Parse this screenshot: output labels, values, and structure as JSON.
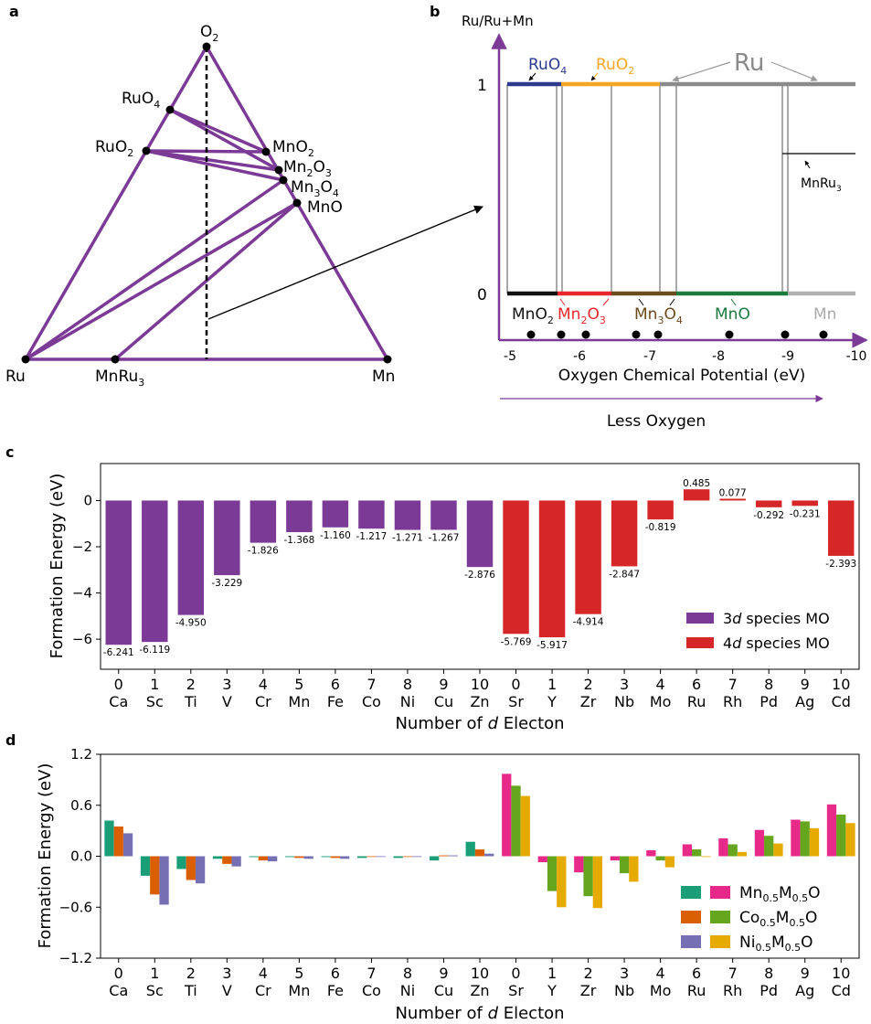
{
  "panels": {
    "a": "a",
    "b": "b",
    "c": "c",
    "d": "d"
  },
  "colors": {
    "purple": "#7b3a96",
    "red": "#d62728",
    "ru_blue": "#2b3a8f",
    "ruo2_orange": "#f5a623",
    "ru_grey": "#8a8a8a",
    "mno2_black": "#111111",
    "mn2o3_red": "#e8262b",
    "mn3o4_brown": "#6b4a1e",
    "mno_green": "#1b7a3e",
    "mn_grey": "#b0b0b0",
    "teal": "#1a9e77",
    "pink": "#e7298a",
    "orange": "#d95f02",
    "green": "#66a61e",
    "lavender": "#7570b3",
    "gold": "#e6ab02"
  },
  "ternary": {
    "vertices": {
      "O2": "O",
      "Ru": "Ru",
      "Mn": "Mn"
    },
    "o2_sub": "2",
    "phases": {
      "RuO4": {
        "main": "RuO",
        "sub": "4"
      },
      "RuO2": {
        "main": "RuO",
        "sub": "2"
      },
      "MnO2": {
        "main": "MnO",
        "sub": "2"
      },
      "Mn2O3": {
        "p1": "Mn",
        "s1": "2",
        "p2": "O",
        "s2": "3"
      },
      "Mn3O4": {
        "p1": "Mn",
        "s1": "3",
        "p2": "O",
        "s2": "4"
      },
      "MnO": {
        "main": "MnO"
      },
      "MnRu3": {
        "main": "MnRu",
        "sub": "3"
      }
    }
  },
  "phase_diagram": {
    "ylabel": "Ru/Ru+Mn",
    "xlabel": "Oxygen Chemical Potential (eV)",
    "arrow_label": "Less Oxygen",
    "yticks": [
      "1",
      "0"
    ],
    "xticks": [
      "-5",
      "-6",
      "-7",
      "-8",
      "-9",
      "-10"
    ],
    "top_labels": {
      "ruo4": "RuO",
      "ruo4_sub": "4",
      "ruo2": "RuO",
      "ruo2_sub": "2",
      "ru": "Ru"
    },
    "bottom_labels": {
      "mno2": "MnO",
      "mno2_sub": "2",
      "mn2o3_a": "Mn",
      "mn2o3_s1": "2",
      "mn2o3_b": "O",
      "mn2o3_s2": "3",
      "mn3o4_a": "Mn",
      "mn3o4_s1": "3",
      "mn3o4_b": "O",
      "mn3o4_s2": "4",
      "mno": "MnO",
      "mn": "Mn"
    },
    "mnru3": "MnRu",
    "mnru3_sub": "3"
  },
  "chart_data": [
    {
      "id": "c",
      "type": "bar",
      "ylabel": "Formation Energy (eV)",
      "xlabel_prefix": "Number of ",
      "xlabel_italic": "d",
      "xlabel_suffix": " Electon",
      "ylim": [
        -7.3,
        1.6
      ],
      "yticks": [
        0,
        -2,
        -4,
        -6
      ],
      "ytick_labels": [
        "0",
        "−2",
        "−4",
        "−6"
      ],
      "electrons": [
        "0",
        "1",
        "2",
        "3",
        "4",
        "5",
        "6",
        "7",
        "8",
        "9",
        "10",
        "0",
        "1",
        "2",
        "3",
        "4",
        "6",
        "7",
        "8",
        "9",
        "10"
      ],
      "elements": [
        "Ca",
        "Sc",
        "Ti",
        "V",
        "Cr",
        "Mn",
        "Fe",
        "Co",
        "Ni",
        "Cu",
        "Zn",
        "Sr",
        "Y",
        "Zr",
        "Nb",
        "Mo",
        "Ru",
        "Rh",
        "Pd",
        "Ag",
        "Cd"
      ],
      "values": [
        -6.241,
        -6.119,
        -4.95,
        -3.229,
        -1.826,
        -1.368,
        -1.16,
        -1.217,
        -1.271,
        -1.267,
        -2.876,
        -5.769,
        -5.917,
        -4.914,
        -2.847,
        -0.819,
        0.485,
        0.077,
        -0.292,
        -0.231,
        -2.393
      ],
      "value_labels": [
        "-6.241",
        "-6.119",
        "-4.950",
        "-3.229",
        "-1.826",
        "-1.368",
        "-1.160",
        "-1.217",
        "-1.271",
        "-1.267",
        "-2.876",
        "-5.769",
        "-5.917",
        "-4.914",
        "-2.847",
        "-0.819",
        "0.485",
        "0.077",
        "-0.292",
        "-0.231",
        "-2.393"
      ],
      "groups": [
        0,
        0,
        0,
        0,
        0,
        0,
        0,
        0,
        0,
        0,
        0,
        1,
        1,
        1,
        1,
        1,
        1,
        1,
        1,
        1,
        1
      ],
      "legend": [
        {
          "prefix": "3",
          "italic": "d",
          "suffix": " species MO"
        },
        {
          "prefix": "4",
          "italic": "d",
          "suffix": " species MO"
        }
      ]
    },
    {
      "id": "d",
      "type": "bar",
      "ylabel": "Formation Energy (eV)",
      "xlabel_prefix": "Number of ",
      "xlabel_italic": "d",
      "xlabel_suffix": " Electon",
      "ylim": [
        -1.2,
        1.2
      ],
      "yticks": [
        1.2,
        0.6,
        0.0,
        -0.6,
        -1.2
      ],
      "ytick_labels": [
        "1.2",
        "0.6",
        "0.0",
        "−0.6",
        "−1.2"
      ],
      "electrons": [
        "0",
        "1",
        "2",
        "3",
        "4",
        "5",
        "6",
        "7",
        "8",
        "9",
        "10",
        "0",
        "1",
        "2",
        "3",
        "4",
        "6",
        "7",
        "8",
        "9",
        "10"
      ],
      "elements": [
        "Ca",
        "Sc",
        "Ti",
        "V",
        "Cr",
        "Mn",
        "Fe",
        "Co",
        "Ni",
        "Cu",
        "Zn",
        "Sr",
        "Y",
        "Zr",
        "Nb",
        "Mo",
        "Ru",
        "Rh",
        "Pd",
        "Ag",
        "Cd"
      ],
      "series": [
        {
          "name": "Mn0.5M0.5O",
          "values": [
            0.42,
            -0.23,
            -0.15,
            -0.03,
            -0.01,
            -0.01,
            -0.01,
            -0.02,
            -0.02,
            -0.05,
            0.17,
            0.97,
            -0.07,
            -0.19,
            -0.05,
            0.07,
            0.14,
            0.21,
            0.31,
            0.43,
            0.61
          ]
        },
        {
          "name": "Co0.5M0.5O",
          "values": [
            0.35,
            -0.45,
            -0.28,
            -0.09,
            -0.05,
            -0.02,
            -0.02,
            0.0,
            0.0,
            0.01,
            0.08,
            0.83,
            -0.41,
            -0.47,
            -0.2,
            -0.05,
            0.08,
            0.14,
            0.24,
            0.41,
            0.49
          ]
        },
        {
          "name": "Ni0.5M0.5O",
          "values": [
            0.27,
            -0.57,
            -0.32,
            -0.12,
            -0.06,
            -0.03,
            -0.03,
            0.0,
            0.0,
            0.01,
            0.03,
            0.71,
            -0.6,
            -0.61,
            -0.3,
            -0.13,
            0.0,
            0.05,
            0.15,
            0.33,
            0.39
          ]
        }
      ],
      "colors_3d": [
        "#1a9e77",
        "#d95f02",
        "#7570b3"
      ],
      "colors_4d": [
        "#e7298a",
        "#66a61e",
        "#e6ab02"
      ],
      "legend": [
        {
          "a": "Mn",
          "s1": "0.5",
          "b": "M",
          "s2": "0.5",
          "c": "O"
        },
        {
          "a": "Co",
          "s1": "0.5",
          "b": "M",
          "s2": "0.5",
          "c": "O"
        },
        {
          "a": "Ni",
          "s1": "0.5",
          "b": "M",
          "s2": "0.5",
          "c": "O"
        }
      ]
    }
  ]
}
